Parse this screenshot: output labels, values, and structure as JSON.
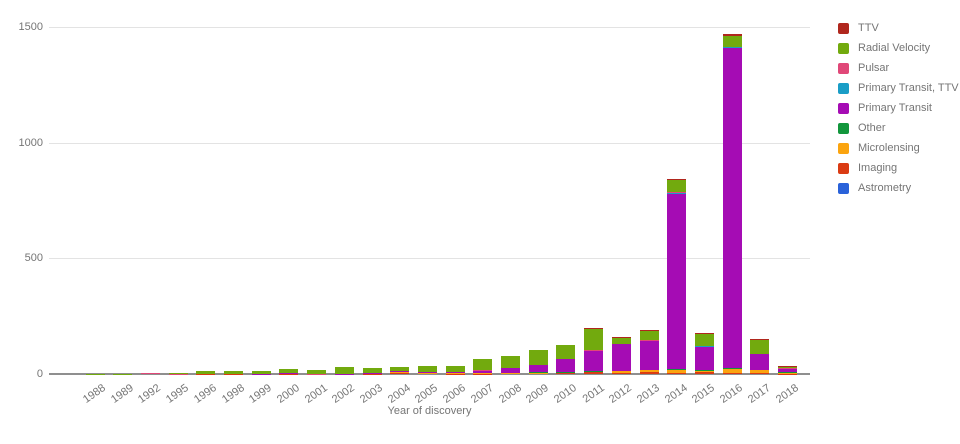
{
  "chart_data": {
    "type": "bar",
    "stacked": true,
    "title": "",
    "xlabel": "Year of discovery",
    "ylabel": "",
    "ylim": [
      0,
      1500
    ],
    "y_ticks": [
      0,
      500,
      1000,
      1500
    ],
    "grid": "horizontal",
    "legend_position": "right",
    "categories": [
      "1988",
      "1989",
      "1992",
      "1995",
      "1996",
      "1998",
      "1999",
      "2000",
      "2001",
      "2002",
      "2003",
      "2004",
      "2005",
      "2006",
      "2007",
      "2008",
      "2009",
      "2010",
      "2011",
      "2012",
      "2013",
      "2014",
      "2015",
      "2016",
      "2017",
      "2018"
    ],
    "series": [
      {
        "name": "Astrometry",
        "color": "#2a62d9",
        "values": [
          0,
          0,
          0,
          0,
          0,
          0,
          0,
          0,
          0,
          0,
          0,
          0,
          0,
          0,
          0,
          0,
          0,
          0,
          0,
          0,
          0,
          0,
          0,
          0,
          0,
          0
        ]
      },
      {
        "name": "Imaging",
        "color": "#da3b13",
        "values": [
          0,
          0,
          0,
          0,
          2,
          1,
          0,
          1,
          1,
          1,
          2,
          5,
          3,
          1,
          2,
          3,
          4,
          5,
          8,
          5,
          8,
          6,
          8,
          4,
          5,
          2
        ]
      },
      {
        "name": "Microlensing",
        "color": "#fba40f",
        "values": [
          0,
          0,
          0,
          0,
          0,
          0,
          0,
          0,
          0,
          0,
          0,
          3,
          2,
          2,
          3,
          3,
          2,
          3,
          6,
          8,
          8,
          12,
          8,
          18,
          12,
          5
        ]
      },
      {
        "name": "Other",
        "color": "#12963c",
        "values": [
          0,
          0,
          0,
          0,
          0,
          0,
          0,
          0,
          0,
          0,
          0,
          0,
          0,
          0,
          0,
          0,
          1,
          2,
          1,
          0,
          0,
          4,
          2,
          6,
          0,
          1
        ]
      },
      {
        "name": "Primary Transit",
        "color": "#a50cb4",
        "values": [
          0,
          0,
          0,
          0,
          0,
          0,
          1,
          2,
          0,
          1,
          1,
          3,
          4,
          5,
          10,
          20,
          30,
          53,
          85,
          118,
          128,
          755,
          98,
          1380,
          70,
          16
        ]
      },
      {
        "name": "Primary Transit, TTV",
        "color": "#1a9dc6",
        "values": [
          0,
          0,
          0,
          0,
          0,
          0,
          0,
          0,
          0,
          0,
          0,
          0,
          0,
          0,
          0,
          0,
          0,
          0,
          2,
          0,
          0,
          4,
          6,
          4,
          0,
          0
        ]
      },
      {
        "name": "Pulsar",
        "color": "#e04878",
        "values": [
          0,
          0,
          3,
          2,
          0,
          0,
          0,
          0,
          1,
          0,
          0,
          0,
          0,
          0,
          1,
          0,
          0,
          0,
          2,
          0,
          1,
          4,
          0,
          0,
          0,
          1
        ]
      },
      {
        "name": "Radial Velocity",
        "color": "#72aa0e",
        "values": [
          1,
          1,
          0,
          1,
          10,
          11,
          13,
          20,
          15,
          29,
          23,
          20,
          25,
          27,
          48,
          54,
          68,
          62,
          93,
          26,
          40,
          52,
          52,
          50,
          60,
          6
        ]
      },
      {
        "name": "TTV",
        "color": "#b0271d",
        "values": [
          0,
          0,
          0,
          0,
          0,
          0,
          0,
          0,
          0,
          0,
          0,
          0,
          0,
          0,
          0,
          0,
          0,
          0,
          3,
          3,
          5,
          8,
          4,
          8,
          3,
          2
        ]
      }
    ],
    "legend_order_top_to_bottom": [
      "TTV",
      "Radial Velocity",
      "Pulsar",
      "Primary Transit, TTV",
      "Primary Transit",
      "Other",
      "Microlensing",
      "Imaging",
      "Astrometry"
    ]
  },
  "layout_text": {
    "x_axis_title": "Year of discovery"
  },
  "style": {
    "text_color": "#757575",
    "gridline_color": "#e3e3e3",
    "baseline_color": "#8f8f8f",
    "background": "#ffffff"
  }
}
